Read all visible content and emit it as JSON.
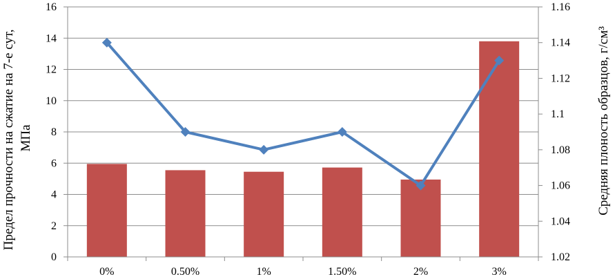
{
  "chart_data": {
    "type": "bar+line",
    "categories": [
      "0%",
      "0.50%",
      "1%",
      "1.50%",
      "2%",
      "3%"
    ],
    "series": [
      {
        "type": "bar",
        "axis": "left",
        "color": "#c0504d",
        "values": [
          5.95,
          5.55,
          5.45,
          5.72,
          4.95,
          13.8
        ]
      },
      {
        "type": "line",
        "axis": "right",
        "color": "#4f81bd",
        "marker": "diamond",
        "values": [
          1.14,
          1.09,
          1.08,
          1.09,
          1.06,
          1.13
        ]
      }
    ],
    "y_left": {
      "label_line1": "Предел прочности на сжатие на 7-е сут,",
      "label_line2": "МПа",
      "ylim": [
        0,
        16
      ],
      "ticks": [
        "0",
        "2",
        "4",
        "6",
        "8",
        "10",
        "12",
        "14",
        "16"
      ]
    },
    "y_right": {
      "label": "Средняя плоность образцов, г/см³",
      "ylim": [
        1.02,
        1.16
      ],
      "ticks": [
        "1.02",
        "1.04",
        "1.06",
        "1.08",
        "1.1",
        "1.12",
        "1.14",
        "1.16"
      ]
    },
    "grid": "horizontal",
    "legend": "none"
  }
}
